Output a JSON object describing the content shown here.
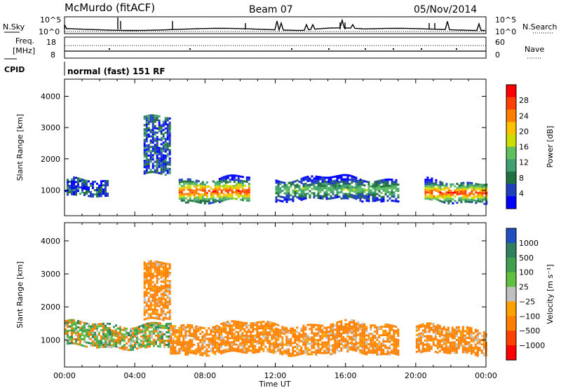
{
  "header": {
    "station": "McMurdo (fitACF)",
    "beam": "Beam 07",
    "date": "05/Nov/2014"
  },
  "top_panels": {
    "nsky_label": "N.Sky",
    "nsky_ticks": [
      "10^5",
      "10^0"
    ],
    "nsearch_label": "N.Search",
    "nsearch_ticks": [
      "10^5",
      "10^0"
    ],
    "freq_label_line1": "Freq.",
    "freq_label_line2": "[MHz]",
    "freq_ticks": [
      "18",
      "8"
    ],
    "nave_label": "Nave",
    "nave_ticks": [
      "60",
      "0"
    ],
    "cpid_label": "CPID",
    "cpid_text": "normal (fast) 151 RF"
  },
  "chart_data": [
    {
      "type": "heatmap",
      "name": "power-panel",
      "xlabel": "",
      "ylabel": "Slant Range [km]",
      "xlim": [
        0,
        24
      ],
      "ylim": [
        180,
        4550
      ],
      "y_ticks": [
        "4000",
        "3000",
        "2000",
        "1000"
      ],
      "y_tick_values": [
        4000,
        3000,
        2000,
        1000
      ],
      "colorbar": {
        "label": "Power [dB]",
        "ticks": [
          "28",
          "24",
          "20",
          "16",
          "12",
          "8",
          "4"
        ],
        "colors": [
          "#ff0000",
          "#ff4000",
          "#ff8000",
          "#ffc000",
          "#ccdd00",
          "#60c060",
          "#40a070",
          "#207040",
          "#2040c0",
          "#0000ff"
        ]
      },
      "approx_regions": [
        {
          "t_start": 0.0,
          "t_end": 2.5,
          "r_low": 800,
          "r_high": 1300,
          "level": "low"
        },
        {
          "t_start": 4.5,
          "t_end": 6.0,
          "r_low": 1500,
          "r_high": 3300,
          "level": "low"
        },
        {
          "t_start": 6.5,
          "t_end": 10.5,
          "r_low": 650,
          "r_high": 1400,
          "level": "high"
        },
        {
          "t_start": 12.0,
          "t_end": 19.0,
          "r_low": 700,
          "r_high": 1400,
          "level": "mid"
        },
        {
          "t_start": 20.5,
          "t_end": 24.0,
          "r_low": 650,
          "r_high": 1300,
          "level": "high"
        }
      ]
    },
    {
      "type": "heatmap",
      "name": "velocity-panel",
      "xlabel": "Time UT",
      "ylabel": "Slant Range [km]",
      "xlim": [
        0,
        24
      ],
      "ylim": [
        180,
        4550
      ],
      "x_ticks": [
        "00:00",
        "04:00",
        "08:00",
        "12:00",
        "16:00",
        "20:00",
        "00:00"
      ],
      "x_tick_values": [
        0,
        4,
        8,
        12,
        16,
        20,
        24
      ],
      "y_ticks": [
        "4000",
        "3000",
        "2000",
        "1000"
      ],
      "y_tick_values": [
        4000,
        3000,
        2000,
        1000
      ],
      "colorbar": {
        "label": "Velocity [m s^-1]",
        "ticks": [
          "1000",
          "500",
          "100",
          "25",
          "−25",
          "−100",
          "−500",
          "−1000"
        ],
        "colors": [
          "#2050c0",
          "#308060",
          "#40a050",
          "#60c040",
          "#c0c0c0",
          "#ffa000",
          "#ff8000",
          "#ff4000",
          "#ff0000"
        ]
      },
      "approx_regions": [
        {
          "t_start": 0.0,
          "t_end": 6.0,
          "r_low": 800,
          "r_high": 1500,
          "level": "mixed"
        },
        {
          "t_start": 4.5,
          "t_end": 6.0,
          "r_low": 1600,
          "r_high": 3300,
          "level": "negative"
        },
        {
          "t_start": 6.0,
          "t_end": 19.0,
          "r_low": 600,
          "r_high": 1500,
          "level": "negative"
        },
        {
          "t_start": 20.0,
          "t_end": 24.0,
          "r_low": 600,
          "r_high": 1400,
          "level": "negative"
        }
      ]
    }
  ]
}
